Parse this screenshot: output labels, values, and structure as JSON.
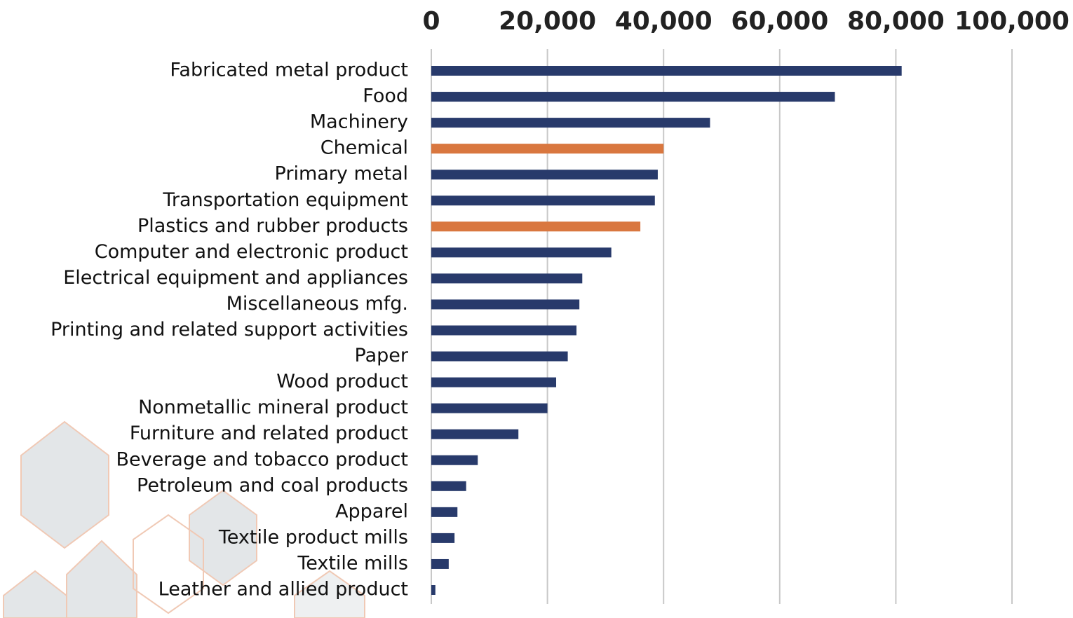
{
  "chart_data": {
    "type": "hbar",
    "categories": [
      "Fabricated metal product",
      "Food",
      "Machinery",
      "Chemical",
      "Primary metal",
      "Transportation equipment",
      "Plastics and rubber products",
      "Computer and electronic product",
      "Electrical equipment and appliances",
      "Miscellaneous mfg.",
      "Printing and related support activities",
      "Paper",
      "Wood product",
      "Nonmetallic mineral product",
      "Furniture and related product",
      "Beverage and tobacco product",
      "Petroleum and coal products",
      "Apparel",
      "Textile product mills",
      "Textile mills",
      "Leather and allied product"
    ],
    "values": [
      81000,
      69500,
      48000,
      40000,
      39000,
      38500,
      36000,
      31000,
      26000,
      25500,
      25000,
      23500,
      21500,
      20000,
      15000,
      8000,
      6000,
      4500,
      4000,
      3000,
      700
    ],
    "colors": [
      "#283a6b",
      "#283a6b",
      "#283a6b",
      "#d9773f",
      "#283a6b",
      "#283a6b",
      "#d9773f",
      "#283a6b",
      "#283a6b",
      "#283a6b",
      "#283a6b",
      "#283a6b",
      "#283a6b",
      "#283a6b",
      "#283a6b",
      "#283a6b",
      "#283a6b",
      "#283a6b",
      "#283a6b",
      "#283a6b",
      "#283a6b"
    ],
    "xlim": [
      0,
      100000
    ],
    "xticks": [
      0,
      {
        "value": 20000,
        "label": "20,000"
      },
      {
        "value": 40000,
        "label": "40,000"
      },
      {
        "value": 60000,
        "label": "60,000"
      },
      {
        "value": 80000,
        "label": "80,000"
      },
      {
        "value": 100000,
        "label": "100,000"
      }
    ],
    "grid": true
  }
}
